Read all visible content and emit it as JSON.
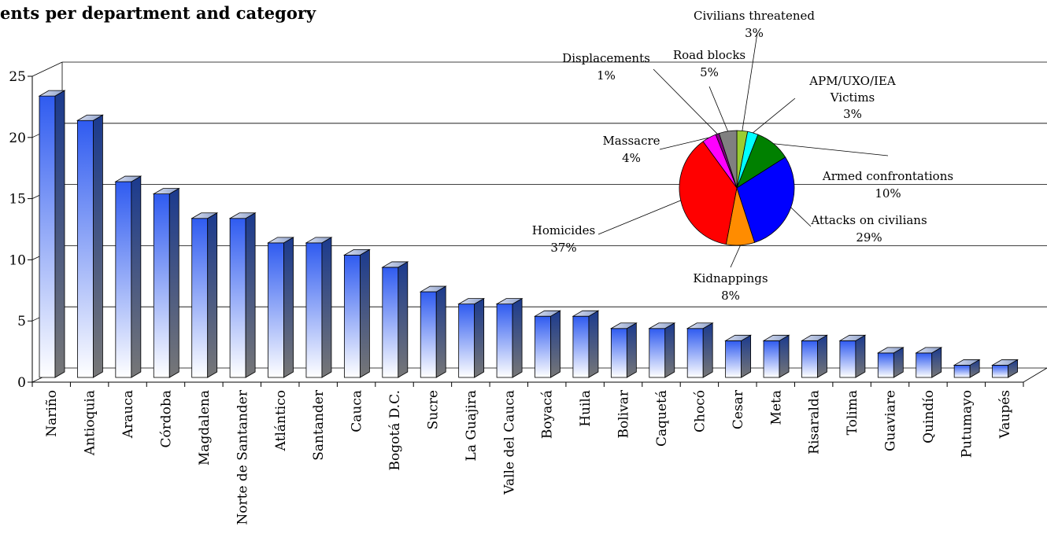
{
  "chart_data": [
    {
      "type": "bar",
      "title": "ents per department and category",
      "categories": [
        "Nariño",
        "Antioquia",
        "Arauca",
        "Córdoba",
        "Magdalena",
        "Norte de Santander",
        "Atlántico",
        "Santander",
        "Cauca",
        "Bogotá D.C.",
        "Sucre",
        "La Guajira",
        "Valle del Cauca",
        "Boyacá",
        "Huila",
        "Bolivar",
        "Caquetá",
        "Chocó",
        "Cesar",
        "Meta",
        "Risaralda",
        "Tolima",
        "Guaviare",
        "Quindío",
        "Putumayo",
        "Vaupés"
      ],
      "values": [
        23,
        21,
        16,
        15,
        13,
        13,
        11,
        11,
        10,
        9,
        7,
        6,
        6,
        5,
        5,
        4,
        4,
        4,
        3,
        3,
        3,
        3,
        2,
        2,
        1,
        1
      ],
      "ylim": [
        0,
        25
      ],
      "yticks": [
        "0",
        "5",
        "10",
        "15",
        "20",
        "25"
      ],
      "grid": true
    },
    {
      "type": "pie",
      "slices": [
        {
          "label": "Civilians threatened",
          "pct_label": "3%",
          "value": 3,
          "color": "#9ACD32"
        },
        {
          "label": "APM/UXO/IEA Victims",
          "pct_label": "3%",
          "value": 3,
          "color": "#00FFFF"
        },
        {
          "label": "Armed confrontations",
          "pct_label": "10%",
          "value": 10,
          "color": "#008000"
        },
        {
          "label": "Attacks on civilians",
          "pct_label": "29%",
          "value": 29,
          "color": "#0000FF"
        },
        {
          "label": "Kidnappings",
          "pct_label": "8%",
          "value": 8,
          "color": "#FF8C00"
        },
        {
          "label": "Homicides",
          "pct_label": "37%",
          "value": 37,
          "color": "#FF0000"
        },
        {
          "label": "Massacre",
          "pct_label": "4%",
          "value": 4,
          "color": "#FF00FF"
        },
        {
          "label": "Displacements",
          "pct_label": "1%",
          "value": 1,
          "color": "#800080"
        },
        {
          "label": "Road blocks",
          "pct_label": "5%",
          "value": 5,
          "color": "#808080"
        }
      ]
    }
  ]
}
